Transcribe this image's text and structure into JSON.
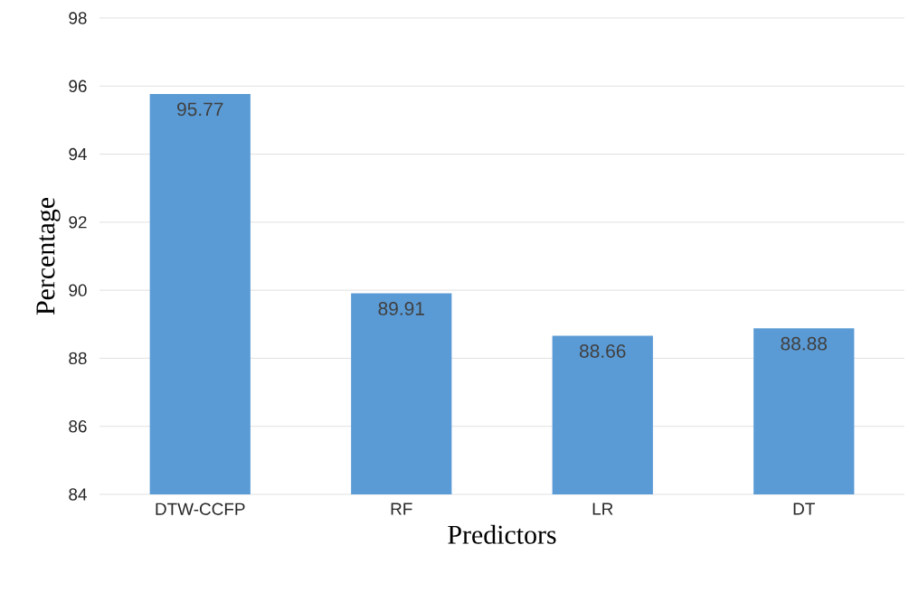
{
  "chart_data": {
    "type": "bar",
    "xlabel": "Predictors",
    "ylabel": "Percentage",
    "categories": [
      "DTW-CCFP",
      "RF",
      "LR",
      "DT"
    ],
    "values": [
      95.77,
      89.91,
      88.66,
      88.88
    ],
    "color": "#5b9bd5",
    "ylim": [
      84,
      98
    ],
    "yticks": [
      84,
      86,
      88,
      90,
      92,
      94,
      96,
      98
    ],
    "grid": "y",
    "data_labels": true
  }
}
